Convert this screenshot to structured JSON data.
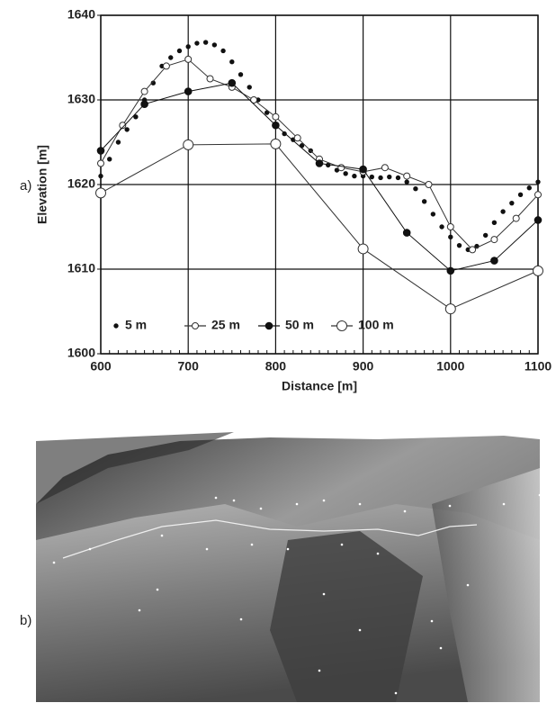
{
  "chart_data": {
    "type": "line",
    "x_label": "Distance [m]",
    "y_label": "Elevation [m]",
    "panel_a": "a)",
    "panel_b": "b)",
    "xlim": [
      600,
      1100
    ],
    "xticks": [
      600,
      700,
      800,
      900,
      1000,
      1100
    ],
    "ylim": [
      1600,
      1640
    ],
    "yticks": [
      1600,
      1610,
      1620,
      1630,
      1640
    ],
    "grid": true,
    "series": [
      {
        "name": "5 m",
        "color": "#111111",
        "marker": "dot",
        "line": false,
        "x": [
          600,
          610,
          620,
          630,
          640,
          650,
          660,
          670,
          680,
          690,
          700,
          710,
          720,
          730,
          740,
          750,
          760,
          770,
          780,
          790,
          800,
          810,
          820,
          830,
          840,
          850,
          860,
          870,
          880,
          890,
          900,
          910,
          920,
          930,
          940,
          950,
          960,
          970,
          980,
          990,
          1000,
          1010,
          1020,
          1030,
          1040,
          1050,
          1060,
          1070,
          1080,
          1090,
          1100
        ],
        "values": [
          1621,
          1623,
          1625,
          1626.5,
          1628,
          1630,
          1632,
          1634,
          1635,
          1635.8,
          1636.3,
          1636.7,
          1636.8,
          1636.5,
          1635.8,
          1634.5,
          1633,
          1631.5,
          1630,
          1628.5,
          1627,
          1626,
          1625.3,
          1624.6,
          1624,
          1623,
          1622.3,
          1621.7,
          1621.3,
          1621,
          1621,
          1620.9,
          1620.8,
          1620.9,
          1620.8,
          1620.3,
          1619.5,
          1618,
          1616.5,
          1615,
          1613.8,
          1612.8,
          1612.3,
          1612.7,
          1614,
          1615.5,
          1616.8,
          1617.8,
          1618.8,
          1619.6,
          1620.3
        ]
      },
      {
        "name": "25 m",
        "color": "#333333",
        "marker": "open-small",
        "line": true,
        "x": [
          600,
          625,
          650,
          675,
          700,
          725,
          750,
          775,
          800,
          825,
          850,
          875,
          900,
          925,
          950,
          975,
          1000,
          1025,
          1050,
          1075,
          1100
        ],
        "values": [
          1622.5,
          1627,
          1631,
          1634,
          1634.8,
          1632.5,
          1631.5,
          1630,
          1628,
          1625.5,
          1623,
          1622,
          1621.5,
          1622,
          1621,
          1620,
          1615,
          1612.3,
          1613.5,
          1616,
          1618.8
        ]
      },
      {
        "name": "50 m",
        "color": "#111111",
        "marker": "filled",
        "line": true,
        "x": [
          600,
          650,
          700,
          750,
          800,
          850,
          900,
          950,
          1000,
          1050,
          1100
        ],
        "values": [
          1624,
          1629.5,
          1631,
          1632,
          1627,
          1622.5,
          1621.8,
          1614.3,
          1609.8,
          1611,
          1615.8
        ]
      },
      {
        "name": "100 m",
        "color": "#333333",
        "marker": "open-large",
        "line": true,
        "x": [
          600,
          700,
          800,
          900,
          1000,
          1100
        ],
        "values": [
          1619,
          1624.7,
          1624.8,
          1612.4,
          1605.3,
          1609.8
        ]
      }
    ]
  }
}
